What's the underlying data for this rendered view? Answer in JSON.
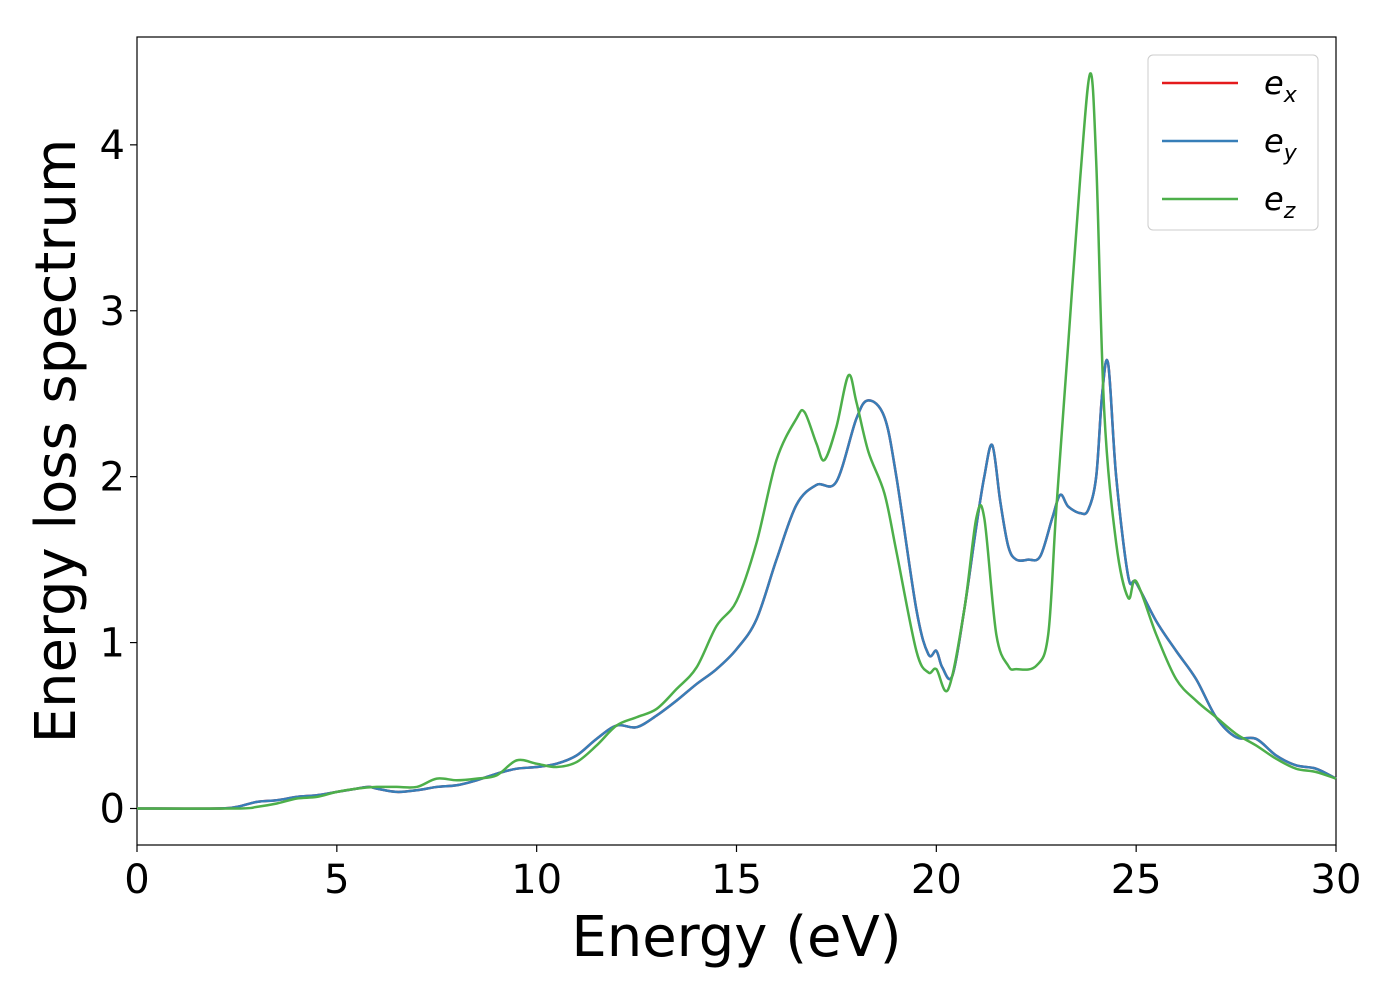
{
  "chart_data": {
    "type": "line",
    "xlabel": "Energy (eV)",
    "ylabel": "Energy loss spectrum",
    "xlim": [
      0,
      30
    ],
    "ylim": [
      -0.22,
      4.65
    ],
    "xticks": [
      0,
      5,
      10,
      15,
      20,
      25,
      30
    ],
    "yticks": [
      0,
      1,
      2,
      3,
      4
    ],
    "grid": false,
    "legend_position": "top-right",
    "series": [
      {
        "name": "e_x",
        "label_base": "e",
        "label_sub": "x",
        "color": "#e41a1c",
        "x": [
          0,
          2,
          2.5,
          3,
          3.5,
          4,
          4.5,
          5,
          5.5,
          5.8,
          6,
          6.5,
          7,
          7.5,
          8,
          8.5,
          9,
          9.5,
          10,
          10.5,
          11,
          11.5,
          12,
          12.5,
          13,
          13.5,
          14,
          14.5,
          15,
          15.5,
          16,
          16.5,
          17,
          17.5,
          18,
          18.3,
          18.7,
          19,
          19.5,
          19.8,
          20,
          20.15,
          20.4,
          20.7,
          21,
          21.2,
          21.4,
          21.6,
          21.8,
          22,
          22.3,
          22.6,
          22.9,
          23.1,
          23.3,
          23.6,
          23.8,
          24,
          24.15,
          24.3,
          24.5,
          24.8,
          25,
          25.5,
          26,
          26.5,
          27,
          27.5,
          28,
          28.5,
          29,
          29.5,
          30
        ],
        "values": [
          0.0,
          0.0,
          0.01,
          0.04,
          0.05,
          0.07,
          0.08,
          0.1,
          0.12,
          0.13,
          0.12,
          0.1,
          0.11,
          0.13,
          0.14,
          0.17,
          0.21,
          0.24,
          0.25,
          0.27,
          0.32,
          0.42,
          0.5,
          0.49,
          0.56,
          0.65,
          0.75,
          0.84,
          0.96,
          1.14,
          1.5,
          1.83,
          1.95,
          1.97,
          2.35,
          2.46,
          2.36,
          2.0,
          1.2,
          0.93,
          0.95,
          0.85,
          0.8,
          1.2,
          1.7,
          2.0,
          2.19,
          1.85,
          1.58,
          1.5,
          1.5,
          1.52,
          1.75,
          1.89,
          1.82,
          1.78,
          1.8,
          2.0,
          2.5,
          2.68,
          2.0,
          1.4,
          1.36,
          1.13,
          0.95,
          0.78,
          0.55,
          0.43,
          0.42,
          0.32,
          0.26,
          0.24,
          0.18
        ]
      },
      {
        "name": "e_y",
        "label_base": "e",
        "label_sub": "y",
        "color": "#377eb8",
        "x": [
          0,
          2,
          2.5,
          3,
          3.5,
          4,
          4.5,
          5,
          5.5,
          5.8,
          6,
          6.5,
          7,
          7.5,
          8,
          8.5,
          9,
          9.5,
          10,
          10.5,
          11,
          11.5,
          12,
          12.5,
          13,
          13.5,
          14,
          14.5,
          15,
          15.5,
          16,
          16.5,
          17,
          17.5,
          18,
          18.3,
          18.7,
          19,
          19.5,
          19.8,
          20,
          20.15,
          20.4,
          20.7,
          21,
          21.2,
          21.4,
          21.6,
          21.8,
          22,
          22.3,
          22.6,
          22.9,
          23.1,
          23.3,
          23.6,
          23.8,
          24,
          24.15,
          24.3,
          24.5,
          24.8,
          25,
          25.5,
          26,
          26.5,
          27,
          27.5,
          28,
          28.5,
          29,
          29.5,
          30
        ],
        "values": [
          0.0,
          0.0,
          0.01,
          0.04,
          0.05,
          0.07,
          0.08,
          0.1,
          0.12,
          0.13,
          0.12,
          0.1,
          0.11,
          0.13,
          0.14,
          0.17,
          0.21,
          0.24,
          0.25,
          0.27,
          0.32,
          0.42,
          0.5,
          0.49,
          0.56,
          0.65,
          0.75,
          0.84,
          0.96,
          1.14,
          1.5,
          1.83,
          1.95,
          1.97,
          2.35,
          2.46,
          2.36,
          2.0,
          1.2,
          0.93,
          0.95,
          0.85,
          0.8,
          1.2,
          1.7,
          2.0,
          2.19,
          1.85,
          1.58,
          1.5,
          1.5,
          1.52,
          1.75,
          1.89,
          1.82,
          1.78,
          1.8,
          2.0,
          2.5,
          2.68,
          2.0,
          1.4,
          1.36,
          1.13,
          0.95,
          0.78,
          0.55,
          0.43,
          0.42,
          0.32,
          0.26,
          0.24,
          0.18
        ]
      },
      {
        "name": "e_z",
        "label_base": "e",
        "label_sub": "z",
        "color": "#4daf4a",
        "x": [
          0,
          2.5,
          3,
          3.5,
          4,
          4.5,
          5,
          5.5,
          6,
          6.5,
          7,
          7.5,
          8,
          8.5,
          9,
          9.5,
          10,
          10.5,
          11,
          11.5,
          12,
          12.5,
          13,
          13.5,
          14,
          14.5,
          15,
          15.5,
          16,
          16.5,
          16.7,
          17,
          17.2,
          17.5,
          17.8,
          18,
          18.3,
          18.7,
          19,
          19.5,
          19.8,
          20,
          20.3,
          20.7,
          21,
          21.2,
          21.5,
          21.8,
          22,
          22.5,
          22.8,
          23,
          23.3,
          23.6,
          23.85,
          24,
          24.2,
          24.5,
          24.8,
          25,
          25.5,
          26,
          26.5,
          27,
          27.5,
          28,
          28.5,
          29,
          29.5,
          30
        ],
        "values": [
          0.0,
          0.0,
          0.01,
          0.03,
          0.06,
          0.07,
          0.1,
          0.12,
          0.13,
          0.13,
          0.13,
          0.18,
          0.17,
          0.18,
          0.2,
          0.29,
          0.27,
          0.25,
          0.28,
          0.38,
          0.5,
          0.55,
          0.6,
          0.72,
          0.85,
          1.1,
          1.25,
          1.6,
          2.1,
          2.35,
          2.39,
          2.2,
          2.1,
          2.3,
          2.61,
          2.45,
          2.15,
          1.9,
          1.55,
          0.95,
          0.82,
          0.84,
          0.72,
          1.2,
          1.75,
          1.75,
          1.05,
          0.86,
          0.84,
          0.86,
          1.05,
          1.8,
          2.8,
          3.8,
          4.43,
          3.9,
          2.4,
          1.6,
          1.27,
          1.37,
          1.05,
          0.78,
          0.65,
          0.55,
          0.45,
          0.38,
          0.3,
          0.24,
          0.22,
          0.18
        ]
      }
    ]
  }
}
